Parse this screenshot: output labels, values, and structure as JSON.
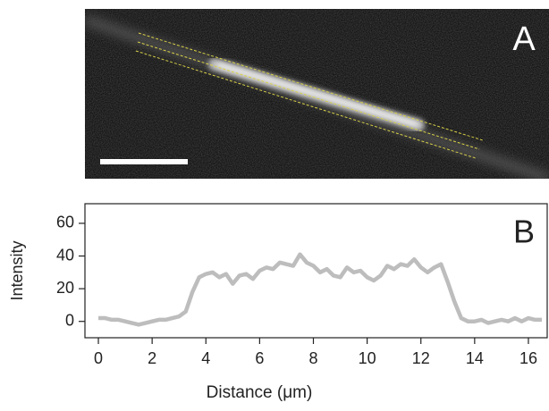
{
  "image_panel": {
    "label": "A"
  },
  "chart_data": {
    "type": "line",
    "panel_label": "B",
    "x_label": "Distance (μm)",
    "y_label": "Intensity",
    "x": [
      0,
      0.25,
      0.5,
      0.75,
      1,
      1.25,
      1.5,
      1.75,
      2,
      2.25,
      2.5,
      2.75,
      3,
      3.25,
      3.5,
      3.75,
      4,
      4.25,
      4.5,
      4.75,
      5,
      5.25,
      5.5,
      5.75,
      6,
      6.25,
      6.5,
      6.75,
      7,
      7.25,
      7.5,
      7.75,
      8,
      8.25,
      8.5,
      8.75,
      9,
      9.25,
      9.5,
      9.75,
      10,
      10.25,
      10.5,
      10.75,
      11,
      11.25,
      11.5,
      11.75,
      12,
      12.25,
      12.5,
      12.75,
      13,
      13.25,
      13.5,
      13.75,
      14,
      14.25,
      14.5,
      14.75,
      15,
      15.25,
      15.5,
      15.75,
      16,
      16.25,
      16.5
    ],
    "values": [
      2,
      2,
      1,
      1,
      0,
      -1,
      -2,
      -1,
      0,
      1,
      1,
      2,
      3,
      6,
      18,
      27,
      29,
      30,
      27,
      29,
      23,
      28,
      29,
      26,
      31,
      33,
      32,
      36,
      35,
      34,
      41,
      36,
      34,
      30,
      32,
      28,
      27,
      33,
      30,
      31,
      27,
      25,
      28,
      34,
      32,
      35,
      34,
      38,
      33,
      30,
      33,
      35,
      24,
      12,
      2,
      0,
      0,
      1,
      -1,
      0,
      1,
      0,
      2,
      0,
      2,
      1,
      1
    ],
    "color": "#bdbdbd",
    "xlim": [
      -0.5,
      16.7
    ],
    "ylim": [
      -10,
      72
    ],
    "xticks": [
      0,
      2,
      4,
      6,
      8,
      10,
      12,
      14,
      16
    ],
    "yticks": [
      0,
      20,
      40,
      60
    ]
  }
}
